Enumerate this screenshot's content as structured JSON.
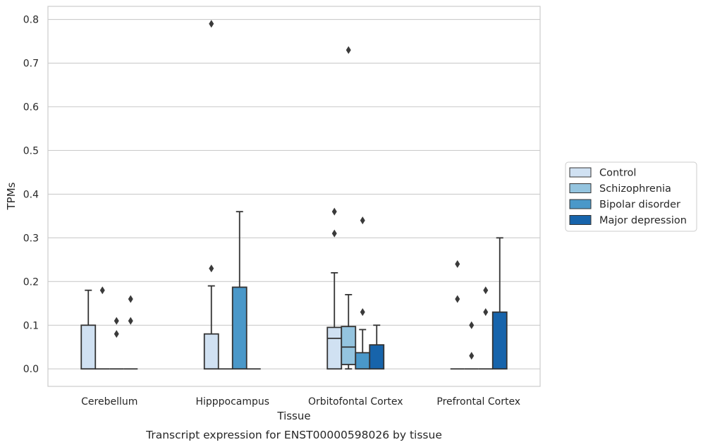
{
  "caption": "Transcript expression for ENST00000598026 by tissue",
  "chart_data": {
    "type": "box",
    "title": "",
    "xlabel": "Tissue",
    "ylabel": "TPMs",
    "ylim": [
      -0.04,
      0.83
    ],
    "yticks": [
      0.0,
      0.1,
      0.2,
      0.3,
      0.4,
      0.5,
      0.6,
      0.7,
      0.8
    ],
    "ytick_labels": [
      "0.0",
      "0.1",
      "0.2",
      "0.3",
      "0.4",
      "0.5",
      "0.6",
      "0.7",
      "0.8"
    ],
    "grid": "horizontal",
    "legend_position": "right",
    "categories": [
      "Cerebellum",
      "Hipppocampus",
      "Orbitofontal Cortex",
      "Prefrontal Cortex"
    ],
    "series": [
      {
        "name": "Control",
        "color": "#d0e1f2",
        "boxes": [
          {
            "q1": 0.0,
            "median": 0.0,
            "q3": 0.1,
            "whisker_low": 0.0,
            "whisker_high": 0.18,
            "outliers": []
          },
          {
            "q1": 0.0,
            "median": 0.0,
            "q3": 0.08,
            "whisker_low": 0.0,
            "whisker_high": 0.19,
            "outliers": [
              0.23,
              0.79
            ]
          },
          {
            "q1": 0.0,
            "median": 0.07,
            "q3": 0.095,
            "whisker_low": 0.0,
            "whisker_high": 0.22,
            "outliers": [
              0.31,
              0.36
            ]
          },
          {
            "q1": 0.0,
            "median": 0.0,
            "q3": 0.0,
            "whisker_low": 0.0,
            "whisker_high": 0.0,
            "outliers": [
              0.16,
              0.24
            ]
          }
        ]
      },
      {
        "name": "Schizophrenia",
        "color": "#94c4df",
        "boxes": [
          {
            "q1": 0.0,
            "median": 0.0,
            "q3": 0.0,
            "whisker_low": 0.0,
            "whisker_high": 0.0,
            "outliers": [
              0.18
            ]
          },
          {
            "q1": 0.0,
            "median": 0.0,
            "q3": 0.0,
            "whisker_low": 0.0,
            "whisker_high": 0.0,
            "outliers": []
          },
          {
            "q1": 0.01,
            "median": 0.05,
            "q3": 0.097,
            "whisker_low": 0.0,
            "whisker_high": 0.17,
            "outliers": [
              0.73
            ]
          },
          {
            "q1": 0.0,
            "median": 0.0,
            "q3": 0.0,
            "whisker_low": 0.0,
            "whisker_high": 0.0,
            "outliers": [
              0.03,
              0.1
            ]
          }
        ]
      },
      {
        "name": "Bipolar disorder",
        "color": "#4a98c9",
        "boxes": [
          {
            "q1": 0.0,
            "median": 0.0,
            "q3": 0.0,
            "whisker_low": 0.0,
            "whisker_high": 0.0,
            "outliers": [
              0.08,
              0.11
            ]
          },
          {
            "q1": 0.0,
            "median": 0.0,
            "q3": 0.187,
            "whisker_low": 0.0,
            "whisker_high": 0.36,
            "outliers": []
          },
          {
            "q1": 0.0,
            "median": 0.0,
            "q3": 0.037,
            "whisker_low": 0.0,
            "whisker_high": 0.09,
            "outliers": [
              0.13,
              0.34
            ]
          },
          {
            "q1": 0.0,
            "median": 0.0,
            "q3": 0.0,
            "whisker_low": 0.0,
            "whisker_high": 0.0,
            "outliers": [
              0.13,
              0.18
            ]
          }
        ]
      },
      {
        "name": "Major depression",
        "color": "#1764ab",
        "boxes": [
          {
            "q1": 0.0,
            "median": 0.0,
            "q3": 0.0,
            "whisker_low": 0.0,
            "whisker_high": 0.0,
            "outliers": [
              0.11,
              0.16
            ]
          },
          {
            "q1": 0.0,
            "median": 0.0,
            "q3": 0.0,
            "whisker_low": 0.0,
            "whisker_high": 0.0,
            "outliers": []
          },
          {
            "q1": 0.0,
            "median": 0.0,
            "q3": 0.055,
            "whisker_low": 0.0,
            "whisker_high": 0.1,
            "outliers": []
          },
          {
            "q1": 0.0,
            "median": 0.0,
            "q3": 0.13,
            "whisker_low": 0.0,
            "whisker_high": 0.3,
            "outliers": []
          }
        ]
      }
    ]
  }
}
